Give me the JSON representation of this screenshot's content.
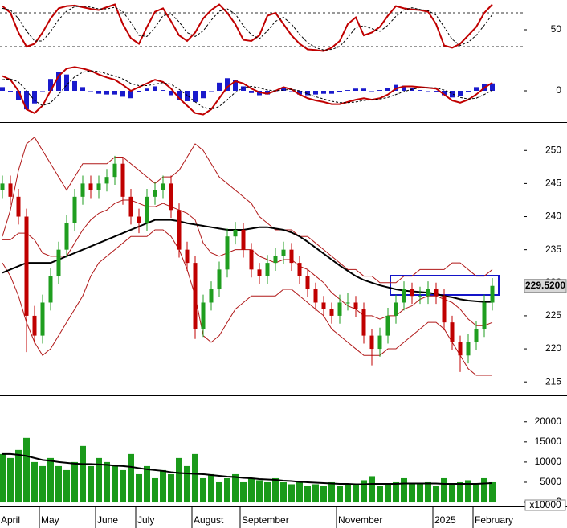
{
  "chart_data": [
    {
      "type": "line",
      "ylim": [
        0,
        100
      ],
      "yticks": [
        50
      ],
      "levels": [
        20,
        80
      ],
      "series": [
        {
          "color": "#c00000",
          "values": [
            92,
            80,
            45,
            20,
            25,
            45,
            70,
            88,
            92,
            93,
            90,
            87,
            85,
            90,
            95,
            60,
            35,
            25,
            55,
            82,
            88,
            65,
            40,
            30,
            45,
            70,
            85,
            95,
            80,
            60,
            32,
            30,
            40,
            75,
            80,
            60,
            40,
            25,
            15,
            14,
            12,
            18,
            30,
            60,
            72,
            40,
            45,
            55,
            75,
            92,
            88,
            86,
            85,
            82,
            60,
            22,
            18,
            25,
            40,
            55,
            80,
            95
          ]
        },
        {
          "color": "#000000",
          "dash": true,
          "values": [
            88,
            85,
            70,
            48,
            30,
            30,
            47,
            68,
            83,
            91,
            92,
            90,
            87,
            87,
            90,
            82,
            63,
            40,
            38,
            54,
            75,
            78,
            64,
            45,
            38,
            48,
            67,
            83,
            87,
            78,
            57,
            41,
            34,
            48,
            65,
            72,
            60,
            42,
            27,
            18,
            14,
            15,
            20,
            36,
            54,
            57,
            52,
            47,
            58,
            74,
            85,
            89,
            86,
            84,
            76,
            55,
            33,
            22,
            28,
            40,
            58,
            77
          ]
        }
      ]
    },
    {
      "type": "macd",
      "ylim": [
        -4,
        4
      ],
      "yticks": [
        0
      ],
      "hist_color": "#1a1acc",
      "hist": [
        0.5,
        -0.1,
        -1.2,
        -2.5,
        -1.7,
        0,
        1.6,
        2.5,
        2.2,
        1.3,
        0.5,
        0,
        -0.4,
        -0.5,
        -0.5,
        -0.8,
        -1,
        -0.2,
        0.3,
        0.6,
        0.1,
        -0.6,
        -1.2,
        -1.4,
        -1.5,
        -1,
        0,
        1.1,
        1.7,
        1.5,
        0.6,
        -0.3,
        -0.6,
        -0.5,
        0,
        0.4,
        0,
        -0.5,
        -0.6,
        -0.5,
        -0.4,
        -0.4,
        -0.2,
        0.1,
        0.3,
        0.3,
        0,
        0.1,
        0.4,
        0.8,
        0.7,
        0.4,
        0.1,
        0,
        -0.1,
        -0.6,
        -0.9,
        -0.7,
        -0.1,
        0.5,
        0.9,
        1.0
      ],
      "series": [
        {
          "color": "#c00000",
          "values": [
            2,
            1.5,
            0,
            -2.5,
            -3,
            -2,
            0,
            2,
            3,
            3.2,
            3,
            2.7,
            2.2,
            1.8,
            1.5,
            0.8,
            0,
            0.5,
            1,
            1.5,
            1.2,
            0.3,
            -1,
            -2,
            -3,
            -3.2,
            -2.5,
            -1,
            0.5,
            1.3,
            1,
            0.3,
            -0.2,
            -0.4,
            0,
            0.5,
            0.2,
            -0.5,
            -1,
            -1.3,
            -1.5,
            -1.8,
            -1.8,
            -1.5,
            -1.2,
            -1,
            -1.2,
            -1,
            -0.5,
            0.3,
            0.6,
            0.6,
            0.5,
            0.4,
            0.3,
            -0.5,
            -1.3,
            -1.6,
            -1.2,
            -0.5,
            0.4,
            1.1
          ]
        },
        {
          "color": "#000000",
          "dash": true,
          "values": [
            1.5,
            1.6,
            1.2,
            0,
            -1.3,
            -2,
            -1.6,
            -0.5,
            0.8,
            1.9,
            2.5,
            2.7,
            2.6,
            2.3,
            2,
            1.6,
            1,
            0.7,
            0.7,
            0.9,
            1.1,
            0.9,
            0.2,
            -0.6,
            -1.5,
            -2.2,
            -2.5,
            -2.1,
            -1.2,
            -0.2,
            0.4,
            0.6,
            0.4,
            0.1,
            0,
            0.1,
            0.2,
            0,
            -0.4,
            -0.8,
            -1.1,
            -1.4,
            -1.6,
            -1.6,
            -1.5,
            -1.3,
            -1.2,
            -1.1,
            -0.9,
            -0.5,
            -0.1,
            0.2,
            0.4,
            0.4,
            0.4,
            0.1,
            -0.4,
            -0.9,
            -1.1,
            -1,
            -0.5,
            0.1
          ]
        }
      ]
    },
    {
      "type": "candlestick",
      "ylim": [
        213.2,
        253.8
      ],
      "yticks": [
        215,
        220,
        225,
        230,
        235,
        240,
        245,
        250
      ],
      "up_color": "#1f9e1f",
      "down_color": "#c00000",
      "open": [
        244,
        245,
        243,
        240,
        225,
        222,
        227,
        231,
        235,
        239,
        243,
        245,
        244,
        245,
        246,
        248,
        243,
        240,
        239,
        243,
        244,
        245,
        241,
        235,
        233,
        223,
        227,
        229,
        232,
        237,
        238,
        235,
        232,
        231,
        233,
        234,
        235,
        233,
        231,
        229,
        227,
        226,
        225,
        227,
        227,
        226,
        222,
        220,
        222,
        225,
        227,
        229,
        228,
        228,
        229,
        228,
        224,
        221,
        219,
        221,
        223,
        227
      ],
      "high": [
        246.2,
        246.2,
        244.2,
        241.2,
        226.5,
        228.2,
        232.2,
        236.2,
        240.2,
        244.2,
        246.2,
        246.2,
        246.2,
        247.2,
        249.2,
        249,
        244.2,
        241.2,
        244.2,
        245.2,
        246.2,
        246.2,
        242,
        236.2,
        234,
        228.2,
        230.2,
        233.2,
        238.2,
        239.2,
        239,
        236,
        233,
        234.2,
        235.2,
        236.2,
        236,
        234,
        232,
        230,
        228,
        227,
        228.2,
        228.4,
        228,
        227,
        223,
        223.2,
        226.2,
        228.2,
        230.2,
        230,
        229.4,
        230.2,
        230,
        229,
        225,
        222,
        222.2,
        224.2,
        228.2,
        230.7
      ],
      "low": [
        242.8,
        241.8,
        238.8,
        219.5,
        220.8,
        220.8,
        225.8,
        229.8,
        233.8,
        237.8,
        241.8,
        242.8,
        242.8,
        243.8,
        244.8,
        241.8,
        238.8,
        237.5,
        237.8,
        241.8,
        242.8,
        239.8,
        233.8,
        231.8,
        221.5,
        221.8,
        225.8,
        227.8,
        230.8,
        235.8,
        233.8,
        230.8,
        229.8,
        229.8,
        231.8,
        232.8,
        231.8,
        229.8,
        227.8,
        225.8,
        224.8,
        223.8,
        223.8,
        225.8,
        224.8,
        220.8,
        217.5,
        218.8,
        220.8,
        223.8,
        225.8,
        226.8,
        226.8,
        226.8,
        226.8,
        222.8,
        219.8,
        216.5,
        217.8,
        219.8,
        221.8,
        225.8
      ],
      "close": [
        245,
        243,
        240,
        225,
        222,
        227,
        231,
        235,
        239,
        243,
        245,
        244,
        245,
        246,
        248,
        243,
        240,
        239,
        243,
        244,
        245,
        241,
        235,
        233,
        223,
        227,
        229,
        232,
        237,
        238,
        235,
        232,
        231,
        233,
        234,
        235,
        233,
        231,
        229,
        227,
        226,
        225,
        227,
        227,
        226,
        222,
        220,
        222,
        225,
        227,
        229,
        228,
        228,
        229,
        228,
        224,
        221,
        219,
        221,
        223,
        227,
        229.52
      ],
      "overlays": [
        {
          "color": "#b01818",
          "values": [
            237,
            241,
            247,
            251,
            252,
            250,
            248,
            246,
            244,
            246,
            248,
            248,
            248,
            248,
            249,
            249,
            248,
            247,
            246,
            245,
            246,
            246,
            247,
            249,
            251,
            250,
            248,
            246,
            245,
            244,
            243,
            242,
            240,
            239,
            238,
            238,
            238,
            237,
            237,
            236,
            235,
            234,
            233,
            232,
            232,
            231,
            231,
            230,
            230,
            230,
            231,
            231,
            232,
            232,
            232,
            232,
            233,
            233,
            232,
            231,
            231,
            232
          ]
        },
        {
          "color": "#b01818",
          "values": [
            236.5,
            236.5,
            237.5,
            237.5,
            236.5,
            234.5,
            234,
            234,
            234,
            236,
            238,
            239.5,
            240.5,
            241,
            242,
            242.5,
            242.5,
            242,
            241.5,
            241.5,
            242,
            241.5,
            241,
            240.5,
            239.5,
            236,
            234.5,
            234,
            234.5,
            235,
            235,
            235,
            234,
            233.5,
            233,
            233.5,
            233.5,
            232.5,
            232,
            231,
            230,
            228.5,
            227.5,
            226.5,
            226,
            225,
            225,
            224.5,
            225,
            225,
            226,
            226.5,
            227.5,
            228,
            228,
            227.5,
            227,
            226,
            224.5,
            223.5,
            223.5,
            224
          ]
        },
        {
          "color": "#b01818",
          "values": [
            233,
            231,
            228,
            224,
            221,
            219,
            220,
            222,
            224,
            226,
            228,
            231,
            233,
            234,
            235,
            236,
            237,
            237,
            237,
            238,
            238,
            237,
            235,
            232,
            228,
            222,
            221,
            222,
            224,
            226,
            227,
            228,
            228,
            228,
            228,
            229,
            229,
            228,
            227,
            226,
            225,
            223,
            222,
            221,
            220,
            219,
            219,
            219,
            220,
            220,
            221,
            222,
            223,
            224,
            224,
            223,
            221,
            219,
            217,
            216,
            216,
            216
          ]
        },
        {
          "color": "#000000",
          "width": 2,
          "values": [
            231.5,
            232,
            232.5,
            233,
            233,
            233,
            233,
            233.5,
            234,
            234.5,
            235,
            235.5,
            236,
            236.5,
            237,
            237.5,
            238,
            238.5,
            239,
            239.5,
            239.5,
            239.5,
            239.3,
            239,
            238.8,
            238.6,
            238.4,
            238.2,
            238,
            238,
            238,
            238.2,
            238.4,
            238.4,
            238.2,
            238,
            237.6,
            237,
            236.2,
            235.3,
            234.4,
            233.5,
            232.6,
            231.8,
            231,
            230.4,
            230,
            229.6,
            229.3,
            229,
            228.8,
            228.7,
            228.6,
            228.5,
            228.3,
            228,
            227.8,
            227.5,
            227.3,
            227.2,
            227.1,
            227.1
          ]
        }
      ],
      "last_price": {
        "value": 229.52,
        "label": "229.5200"
      }
    },
    {
      "type": "bar",
      "ylim": [
        -990,
        26140
      ],
      "yticks": [
        0,
        5000,
        10000,
        15000,
        20000
      ],
      "unit_label": "x10000",
      "color": "#1a9a1a",
      "categories": [
        "April",
        null,
        null,
        null,
        null,
        "May",
        null,
        null,
        null,
        null,
        null,
        null,
        "June",
        null,
        null,
        null,
        null,
        "July",
        null,
        null,
        null,
        null,
        null,
        null,
        "August",
        null,
        null,
        null,
        null,
        null,
        "September",
        null,
        null,
        null,
        null,
        null,
        null,
        null,
        null,
        null,
        null,
        null,
        "November",
        null,
        null,
        null,
        null,
        null,
        null,
        null,
        null,
        null,
        null,
        null,
        "2025",
        null,
        null,
        null,
        null,
        "February",
        null,
        null
      ],
      "values": [
        12000,
        11000,
        13000,
        16000,
        10000,
        9000,
        11000,
        9000,
        8000,
        10000,
        14000,
        9000,
        11000,
        10000,
        9000,
        8000,
        12000,
        7000,
        9000,
        6000,
        8000,
        7000,
        11000,
        9000,
        12000,
        6000,
        7000,
        5000,
        6000,
        7000,
        5000,
        6000,
        5500,
        5000,
        6000,
        5000,
        4500,
        5000,
        4000,
        4500,
        4000,
        5000,
        4000,
        4500,
        4500,
        5500,
        6500,
        4000,
        4500,
        5000,
        6000,
        4500,
        4500,
        5000,
        4000,
        6000,
        4500,
        5000,
        5500,
        4500,
        6000,
        5000
      ],
      "overlays": [
        {
          "color": "#000000",
          "width": 2,
          "values": [
            12000,
            12000,
            11800,
            11500,
            11000,
            10500,
            10300,
            10000,
            9800,
            9600,
            9500,
            9500,
            9400,
            9300,
            9100,
            9000,
            8800,
            8500,
            8200,
            8000,
            7800,
            7500,
            7300,
            7200,
            7100,
            7000,
            6800,
            6600,
            6400,
            6300,
            6100,
            6000,
            5800,
            5700,
            5600,
            5400,
            5300,
            5100,
            5000,
            4900,
            4800,
            4700,
            4600,
            4600,
            4500,
            4500,
            4600,
            4600,
            4600,
            4600,
            4700,
            4700,
            4700,
            4700,
            4700,
            4600,
            4600,
            4600,
            4600,
            4600,
            4700,
            4800
          ]
        }
      ]
    }
  ]
}
